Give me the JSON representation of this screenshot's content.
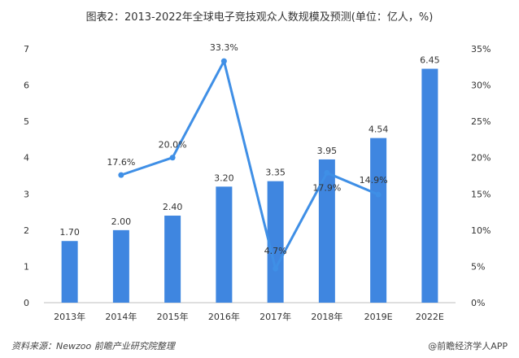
{
  "chart_data": {
    "type": "bar",
    "title": "图表2：2013-2022年全球电子竞技观众人数规模及预测(单位：亿人，%)",
    "categories": [
      "2013年",
      "2014年",
      "2015年",
      "2016年",
      "2017年",
      "2018年",
      "2019E",
      "2022E"
    ],
    "series": [
      {
        "type": "bar",
        "values": [
          1.7,
          2.0,
          2.4,
          3.2,
          3.35,
          3.95,
          4.54,
          6.45
        ],
        "labels": [
          "1.70",
          "2.00",
          "2.40",
          "3.20",
          "3.35",
          "3.95",
          "4.54",
          "6.45"
        ],
        "color": "#3f86e0"
      },
      {
        "type": "line",
        "axis": "right",
        "values": [
          null,
          17.6,
          20.0,
          33.3,
          4.7,
          17.9,
          14.9,
          null
        ],
        "labels": [
          "",
          "17.6%",
          "20.0%",
          "33.3%",
          "4.7%",
          "17.9%",
          "14.9%",
          ""
        ],
        "color": "#3f8fe6"
      }
    ],
    "left_axis": {
      "min": 0,
      "max": 7,
      "step": 1,
      "ticks": [
        "0",
        "1",
        "2",
        "3",
        "4",
        "5",
        "6",
        "7"
      ]
    },
    "right_axis": {
      "min": 0,
      "max": 35,
      "step": 5,
      "ticks": [
        "0%",
        "5%",
        "10%",
        "15%",
        "20%",
        "25%",
        "30%",
        "35%"
      ]
    },
    "grid": false,
    "legend": "none"
  },
  "footer": {
    "source": "资料来源：Newzoo 前瞻产业研究院整理",
    "brand": "@前瞻经济学人APP"
  }
}
